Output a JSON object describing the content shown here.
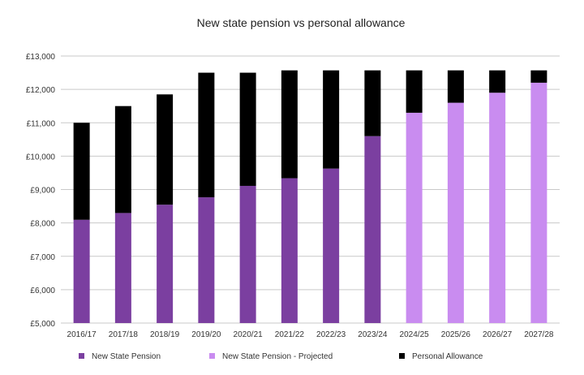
{
  "chart_data": {
    "type": "bar",
    "stacked": true,
    "title": "New state pension vs personal allowance",
    "categories": [
      "2016/17",
      "2017/18",
      "2018/19",
      "2019/20",
      "2020/21",
      "2021/22",
      "2022/23",
      "2023/24",
      "2024/25",
      "2025/26",
      "2026/27",
      "2027/28"
    ],
    "ylim": [
      5000,
      13000
    ],
    "yticks": [
      5000,
      6000,
      7000,
      8000,
      9000,
      10000,
      11000,
      12000,
      13000
    ],
    "ytick_labels": [
      "£5,000",
      "£6,000",
      "£7,000",
      "£8,000",
      "£9,000",
      "£10,000",
      "£11,000",
      "£12,000",
      "£13,000"
    ],
    "grid": true,
    "legend_position": "bottom",
    "series": [
      {
        "name": "New State Pension",
        "color": "#7b3fa0",
        "values": [
          8094,
          8297,
          8546,
          8767,
          9110,
          9339,
          9628,
          10600,
          null,
          null,
          null,
          null
        ]
      },
      {
        "name": "New State Pension - Projected",
        "color": "#c98cf0",
        "values": [
          null,
          null,
          null,
          null,
          null,
          null,
          null,
          null,
          11300,
          11600,
          11900,
          12200
        ]
      },
      {
        "name": "Personal Allowance",
        "color": "#000000",
        "totals": [
          11000,
          11500,
          11850,
          12500,
          12500,
          12570,
          12570,
          12570,
          12570,
          12570,
          12570,
          12570
        ]
      }
    ]
  }
}
